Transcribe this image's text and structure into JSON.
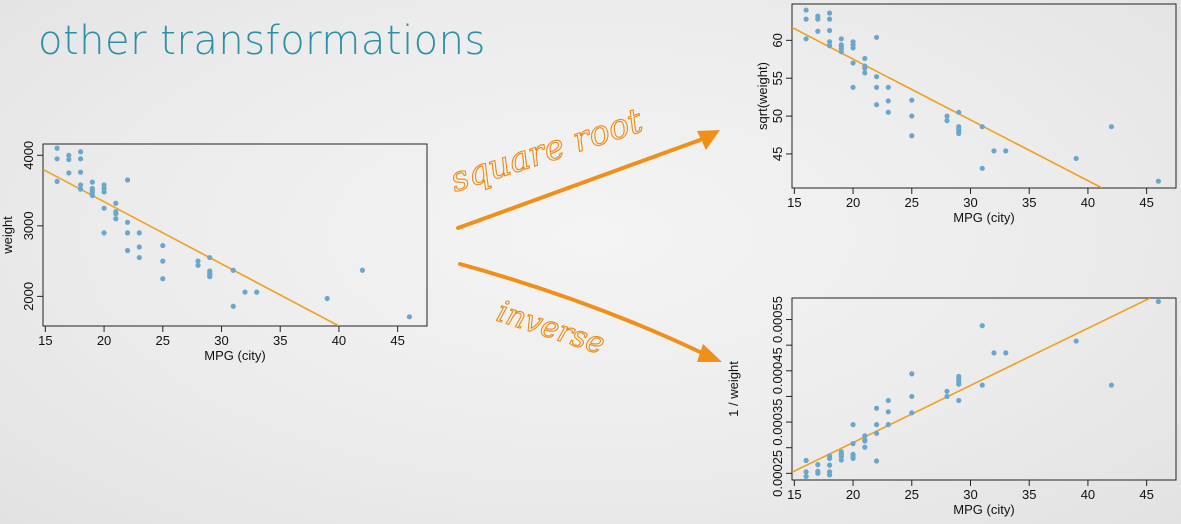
{
  "slide": {
    "title": "other transformations",
    "arrow_label_top": "square root",
    "arrow_label_bottom": "inverse",
    "accent_color": "#f0901a"
  },
  "chart_data": [
    {
      "id": "left",
      "type": "scatter",
      "title": "",
      "xlabel": "MPG (city)",
      "ylabel": "weight",
      "xlim": [
        14.8,
        47.5
      ],
      "ylim": [
        1580,
        4160
      ],
      "xticks": [
        15,
        20,
        25,
        30,
        35,
        40,
        45
      ],
      "yticks": [
        2000,
        3000,
        4000
      ],
      "ytick_labels": [
        "2000",
        "3000",
        "4000"
      ],
      "point_color": "#6aa7cc",
      "line_color": "#f0a020",
      "fit_line": {
        "x": [
          14.8,
          40.0
        ],
        "y": [
          3800,
          1580
        ]
      },
      "points": [
        [
          16,
          4100
        ],
        [
          16,
          3950
        ],
        [
          16,
          3630
        ],
        [
          17,
          4000
        ],
        [
          17,
          3940
        ],
        [
          17,
          3750
        ],
        [
          18,
          4050
        ],
        [
          18,
          3950
        ],
        [
          18,
          3760
        ],
        [
          18,
          3580
        ],
        [
          18,
          3520
        ],
        [
          19,
          3620
        ],
        [
          19,
          3530
        ],
        [
          19,
          3500
        ],
        [
          19,
          3470
        ],
        [
          19,
          3430
        ],
        [
          20,
          3580
        ],
        [
          20,
          3530
        ],
        [
          20,
          3480
        ],
        [
          20,
          3250
        ],
        [
          20,
          2900
        ],
        [
          21,
          3320
        ],
        [
          21,
          3200
        ],
        [
          21,
          3170
        ],
        [
          21,
          3100
        ],
        [
          22,
          3650
        ],
        [
          22,
          3050
        ],
        [
          22,
          2900
        ],
        [
          22,
          2650
        ],
        [
          23,
          2900
        ],
        [
          23,
          2700
        ],
        [
          23,
          2550
        ],
        [
          25,
          2720
        ],
        [
          25,
          2500
        ],
        [
          25,
          2250
        ],
        [
          28,
          2500
        ],
        [
          28,
          2440
        ],
        [
          29,
          2550
        ],
        [
          29,
          2360
        ],
        [
          29,
          2330
        ],
        [
          29,
          2300
        ],
        [
          29,
          2280
        ],
        [
          31,
          2370
        ],
        [
          31,
          1860
        ],
        [
          32,
          2060
        ],
        [
          33,
          2060
        ],
        [
          39,
          1970
        ],
        [
          42,
          2370
        ],
        [
          46,
          1710
        ]
      ]
    },
    {
      "id": "sqrt",
      "type": "scatter",
      "title": "",
      "xlabel": "MPG (city)",
      "ylabel": "sqrt(weight)",
      "xlim": [
        14.8,
        47.5
      ],
      "ylim": [
        40.5,
        64.8
      ],
      "xticks": [
        15,
        20,
        25,
        30,
        35,
        40,
        45
      ],
      "yticks": [
        45,
        50,
        55,
        60
      ],
      "ytick_labels": [
        "45",
        "50",
        "55",
        "60"
      ],
      "point_color": "#6aa7cc",
      "line_color": "#f0a020",
      "fit_line": {
        "x": [
          14.8,
          41.2
        ],
        "y": [
          61.7,
          40.5
        ]
      },
      "points": [
        [
          16,
          64.0
        ],
        [
          16,
          62.8
        ],
        [
          16,
          60.2
        ],
        [
          17,
          63.2
        ],
        [
          17,
          62.8
        ],
        [
          17,
          61.2
        ],
        [
          18,
          63.6
        ],
        [
          18,
          62.8
        ],
        [
          18,
          61.3
        ],
        [
          18,
          59.8
        ],
        [
          18,
          59.3
        ],
        [
          19,
          60.2
        ],
        [
          19,
          59.4
        ],
        [
          19,
          59.2
        ],
        [
          19,
          58.9
        ],
        [
          19,
          58.5
        ],
        [
          20,
          59.8
        ],
        [
          20,
          59.4
        ],
        [
          20,
          59.0
        ],
        [
          20,
          57.0
        ],
        [
          20,
          53.8
        ],
        [
          21,
          57.6
        ],
        [
          21,
          56.6
        ],
        [
          21,
          56.3
        ],
        [
          21,
          55.7
        ],
        [
          22,
          60.4
        ],
        [
          22,
          55.2
        ],
        [
          22,
          53.8
        ],
        [
          22,
          51.5
        ],
        [
          23,
          53.8
        ],
        [
          23,
          52.0
        ],
        [
          23,
          50.5
        ],
        [
          25,
          52.1
        ],
        [
          25,
          50.0
        ],
        [
          25,
          47.4
        ],
        [
          28,
          50.0
        ],
        [
          28,
          49.4
        ],
        [
          29,
          50.5
        ],
        [
          29,
          48.6
        ],
        [
          29,
          48.3
        ],
        [
          29,
          48.0
        ],
        [
          29,
          47.7
        ],
        [
          31,
          48.6
        ],
        [
          31,
          43.1
        ],
        [
          32,
          45.4
        ],
        [
          33,
          45.4
        ],
        [
          39,
          44.4
        ],
        [
          42,
          48.6
        ],
        [
          46,
          41.4
        ]
      ]
    },
    {
      "id": "inverse",
      "type": "scatter",
      "title": "",
      "xlabel": "MPG (city)",
      "ylabel": "1 / weight",
      "xlim": [
        14.8,
        47.5
      ],
      "ylim": [
        0.000237,
        0.000592
      ],
      "xticks": [
        15,
        20,
        25,
        30,
        35,
        40,
        45
      ],
      "yticks": [
        0.00025,
        0.0003,
        0.00035,
        0.0004,
        0.00045,
        0.0005,
        0.00055
      ],
      "ytick_labels": [
        "0.00025",
        "",
        "0.00035",
        "",
        "0.00045",
        "",
        "0.00055"
      ],
      "point_color": "#6aa7cc",
      "line_color": "#f0a020",
      "fit_line": {
        "x": [
          14.8,
          45.3
        ],
        "y": [
          0.000252,
          0.000592
        ]
      },
      "points": [
        [
          16,
          0.000244
        ],
        [
          16,
          0.000253
        ],
        [
          16,
          0.000275
        ],
        [
          17,
          0.00025
        ],
        [
          17,
          0.000254
        ],
        [
          17,
          0.000267
        ],
        [
          18,
          0.000247
        ],
        [
          18,
          0.000253
        ],
        [
          18,
          0.000266
        ],
        [
          18,
          0.000279
        ],
        [
          18,
          0.000284
        ],
        [
          19,
          0.000276
        ],
        [
          19,
          0.000283
        ],
        [
          19,
          0.000286
        ],
        [
          19,
          0.000288
        ],
        [
          19,
          0.000292
        ],
        [
          20,
          0.000279
        ],
        [
          20,
          0.000283
        ],
        [
          20,
          0.000287
        ],
        [
          20,
          0.000308
        ],
        [
          20,
          0.000345
        ],
        [
          21,
          0.000301
        ],
        [
          21,
          0.000313
        ],
        [
          21,
          0.000315
        ],
        [
          21,
          0.000323
        ],
        [
          22,
          0.000274
        ],
        [
          22,
          0.000328
        ],
        [
          22,
          0.000345
        ],
        [
          22,
          0.000377
        ],
        [
          23,
          0.000345
        ],
        [
          23,
          0.00037
        ],
        [
          23,
          0.000392
        ],
        [
          25,
          0.000368
        ],
        [
          25,
          0.0004
        ],
        [
          25,
          0.000444
        ],
        [
          28,
          0.0004
        ],
        [
          28,
          0.00041
        ],
        [
          29,
          0.000392
        ],
        [
          29,
          0.000424
        ],
        [
          29,
          0.000429
        ],
        [
          29,
          0.000435
        ],
        [
          29,
          0.000439
        ],
        [
          31,
          0.000422
        ],
        [
          31,
          0.000538
        ],
        [
          32,
          0.000485
        ],
        [
          33,
          0.000485
        ],
        [
          39,
          0.000508
        ],
        [
          42,
          0.000422
        ],
        [
          46,
          0.000585
        ]
      ]
    }
  ]
}
